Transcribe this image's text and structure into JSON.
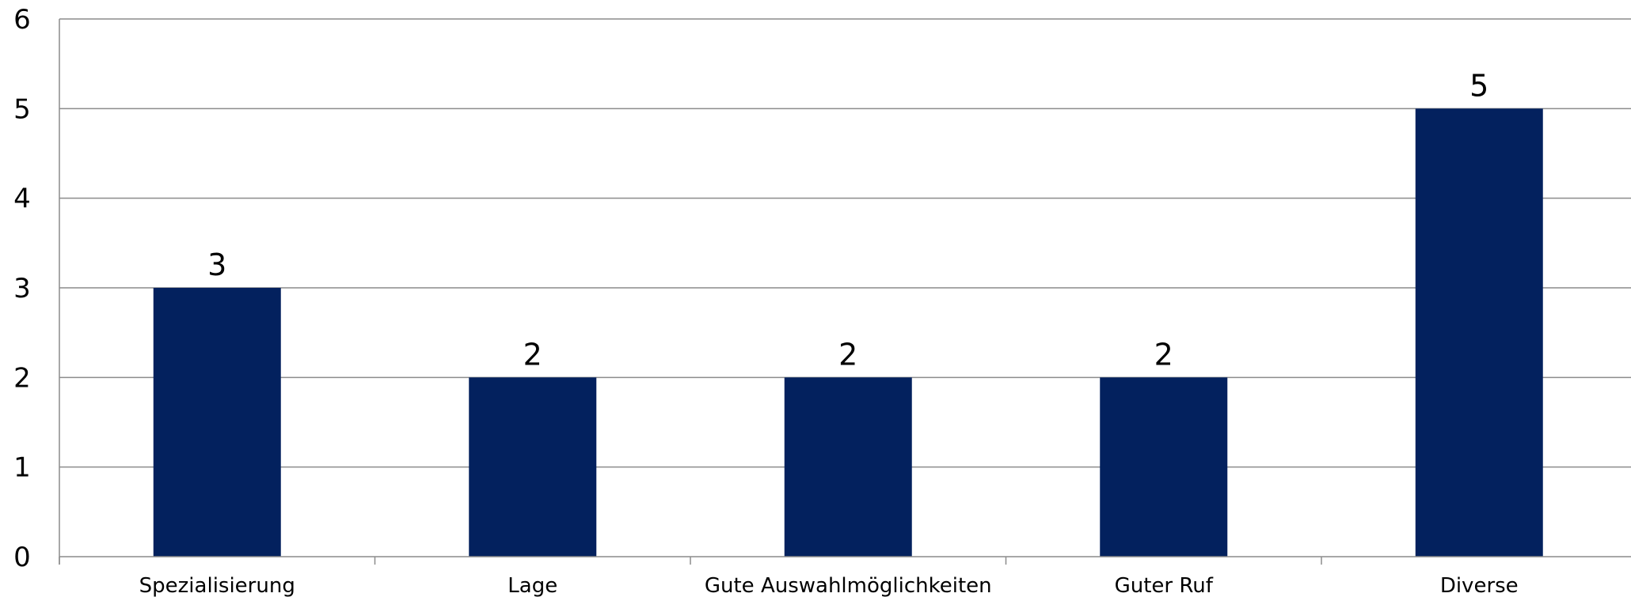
{
  "chart_data": {
    "type": "bar",
    "title": "",
    "xlabel": "",
    "ylabel": "",
    "categories": [
      "Spezialisierung",
      "Lage",
      "Gute Auswahlmöglichkeiten",
      "Guter Ruf",
      "Diverse"
    ],
    "values": [
      3,
      2,
      2,
      2,
      5
    ],
    "ylim": [
      0,
      6
    ],
    "yticks": [
      "0",
      "1",
      "2",
      "3",
      "4",
      "5",
      "6"
    ],
    "data_labels": [
      "3",
      "2",
      "2",
      "2",
      "5"
    ],
    "grid": true,
    "legend": "none",
    "bar_color": "#03215e"
  }
}
